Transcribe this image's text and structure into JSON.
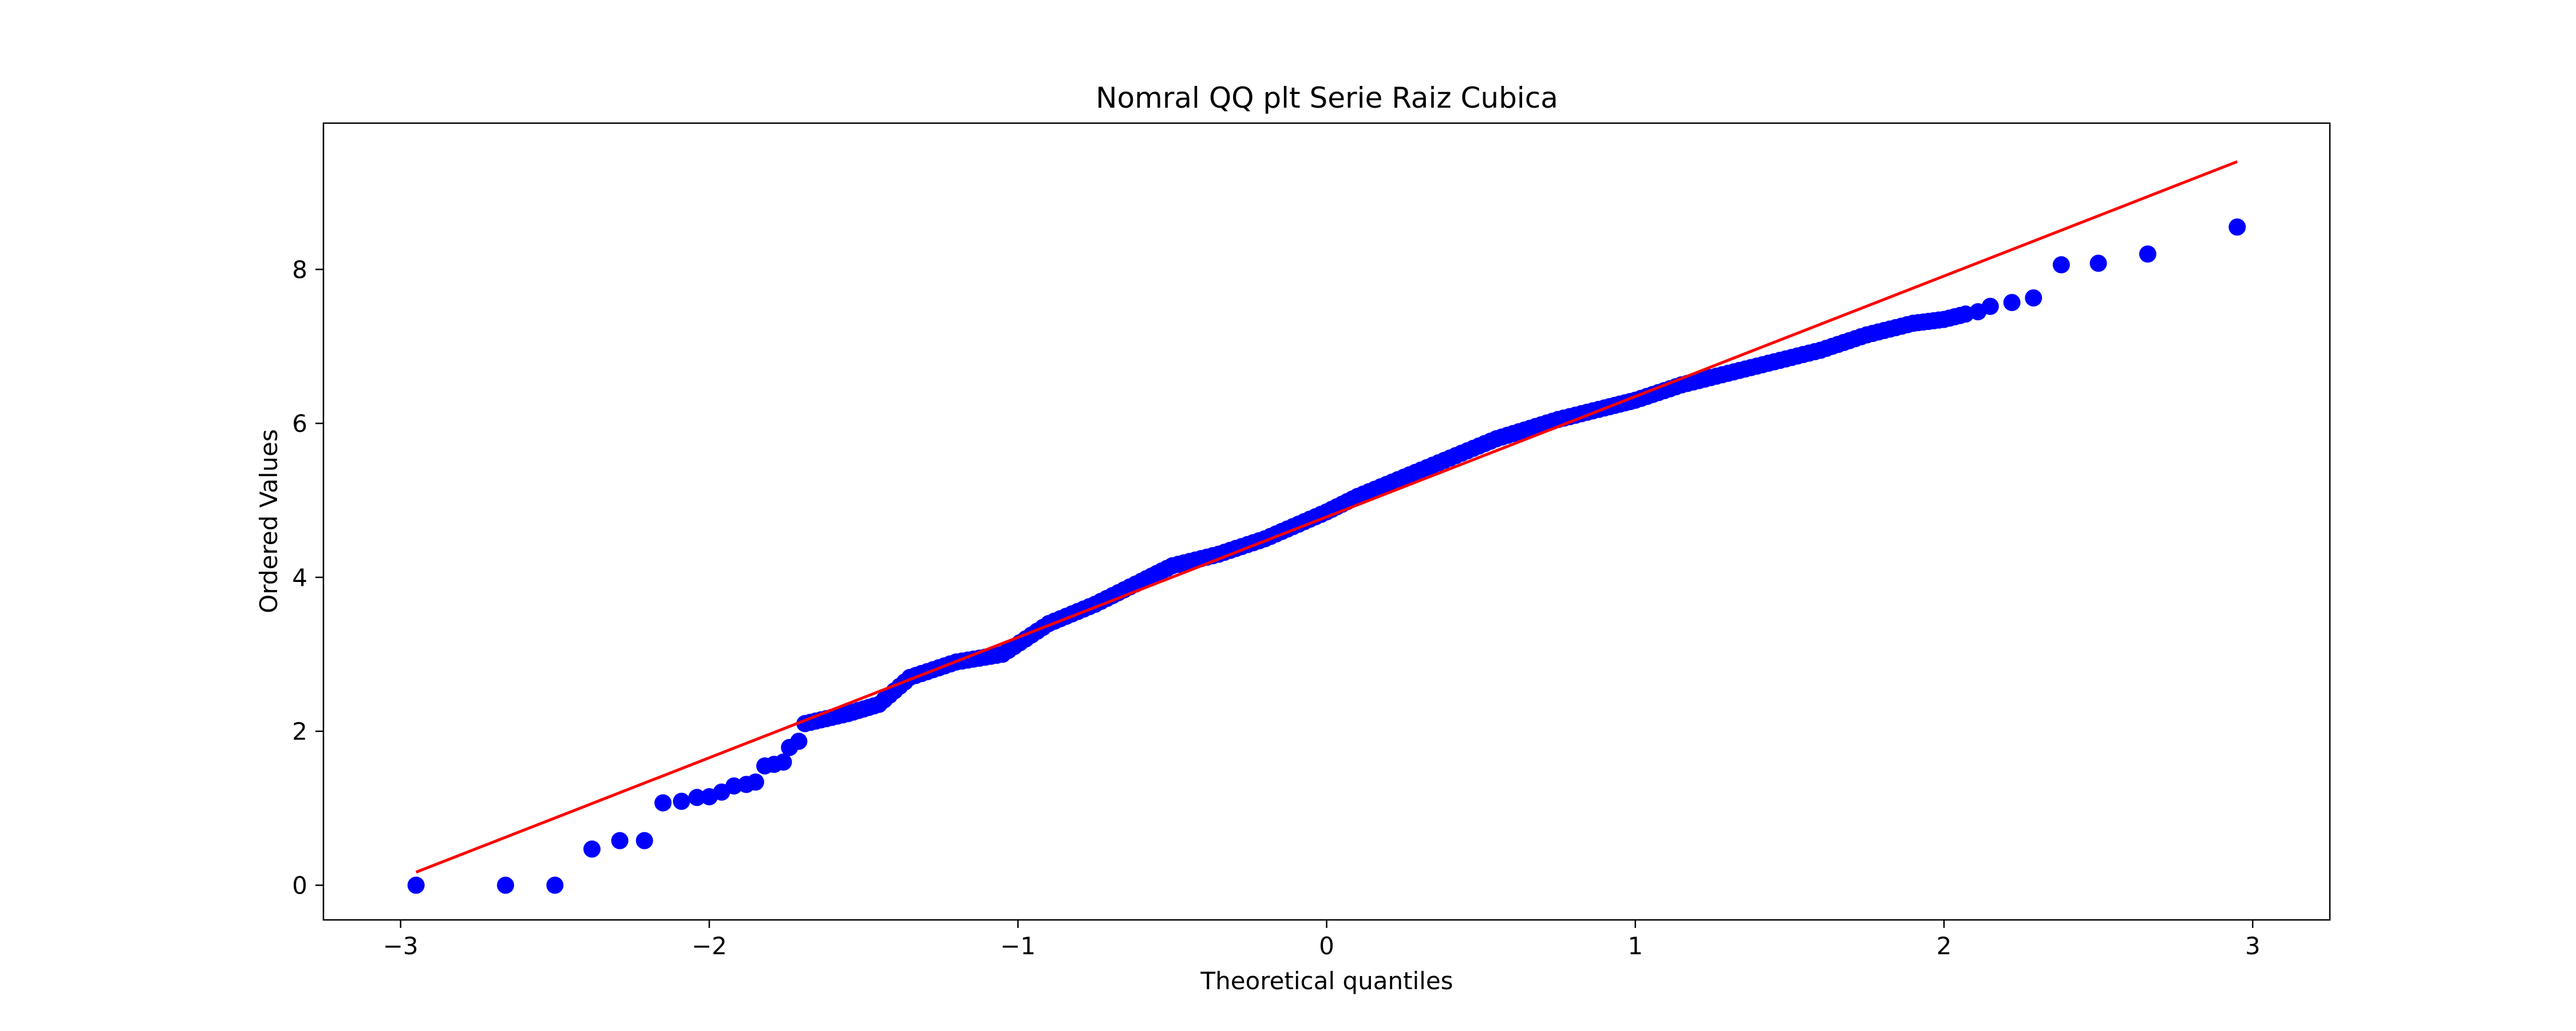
{
  "chart_data": {
    "type": "scatter",
    "title": "Nomral QQ plt Serie Raiz Cubica",
    "xlabel": "Theoretical quantiles",
    "ylabel": "Ordered Values",
    "xlim": [
      -3.25,
      3.25
    ],
    "ylim": [
      -0.45,
      9.9
    ],
    "xticks": [
      -3,
      -2,
      -1,
      0,
      1,
      2,
      3
    ],
    "xtick_labels": [
      "−3",
      "−2",
      "−1",
      "0",
      "1",
      "2",
      "3"
    ],
    "yticks": [
      0,
      2,
      4,
      6,
      8
    ],
    "ytick_labels": [
      "0",
      "2",
      "4",
      "6",
      "8"
    ],
    "grid": false,
    "legend": "none",
    "colors": {
      "points": "#0000ff",
      "fit_line": "#ff0000"
    },
    "series": [
      {
        "kind": "scatter",
        "tail_low": [
          [
            -2.95,
            0.0
          ],
          [
            -2.66,
            0.0
          ],
          [
            -2.5,
            0.0
          ],
          [
            -2.38,
            0.47
          ],
          [
            -2.29,
            0.58
          ],
          [
            -2.21,
            0.58
          ],
          [
            -2.15,
            1.07
          ],
          [
            -2.09,
            1.09
          ],
          [
            -2.04,
            1.14
          ],
          [
            -2.0,
            1.15
          ],
          [
            -1.96,
            1.21
          ],
          [
            -1.92,
            1.29
          ],
          [
            -1.88,
            1.31
          ],
          [
            -1.85,
            1.34
          ],
          [
            -1.82,
            1.55
          ],
          [
            -1.79,
            1.57
          ],
          [
            -1.76,
            1.6
          ],
          [
            -1.74,
            1.79
          ],
          [
            -1.71,
            1.87
          ]
        ],
        "body": [
          [
            -1.69,
            2.1
          ],
          [
            -1.55,
            2.23
          ],
          [
            -1.45,
            2.35
          ],
          [
            -1.35,
            2.7
          ],
          [
            -1.2,
            2.9
          ],
          [
            -1.05,
            3.0
          ],
          [
            -0.9,
            3.4
          ],
          [
            -0.75,
            3.65
          ],
          [
            -0.6,
            3.95
          ],
          [
            -0.5,
            4.15
          ],
          [
            -0.35,
            4.3
          ],
          [
            -0.2,
            4.5
          ],
          [
            0.0,
            4.85
          ],
          [
            0.1,
            5.05
          ],
          [
            0.25,
            5.3
          ],
          [
            0.4,
            5.55
          ],
          [
            0.55,
            5.8
          ],
          [
            0.75,
            6.05
          ],
          [
            0.9,
            6.2
          ],
          [
            1.0,
            6.3
          ],
          [
            1.15,
            6.5
          ],
          [
            1.3,
            6.65
          ],
          [
            1.45,
            6.8
          ],
          [
            1.6,
            6.95
          ],
          [
            1.75,
            7.15
          ],
          [
            1.9,
            7.3
          ],
          [
            2.0,
            7.35
          ],
          [
            2.07,
            7.42
          ]
        ],
        "tail_high": [
          [
            2.11,
            7.45
          ],
          [
            2.15,
            7.52
          ],
          [
            2.22,
            7.57
          ],
          [
            2.29,
            7.63
          ],
          [
            2.38,
            8.06
          ],
          [
            2.5,
            8.08
          ],
          [
            2.66,
            8.2
          ],
          [
            2.95,
            8.55
          ]
        ]
      },
      {
        "kind": "line",
        "x": [
          -2.95,
          2.95
        ],
        "y": [
          0.17,
          9.4
        ]
      }
    ]
  }
}
